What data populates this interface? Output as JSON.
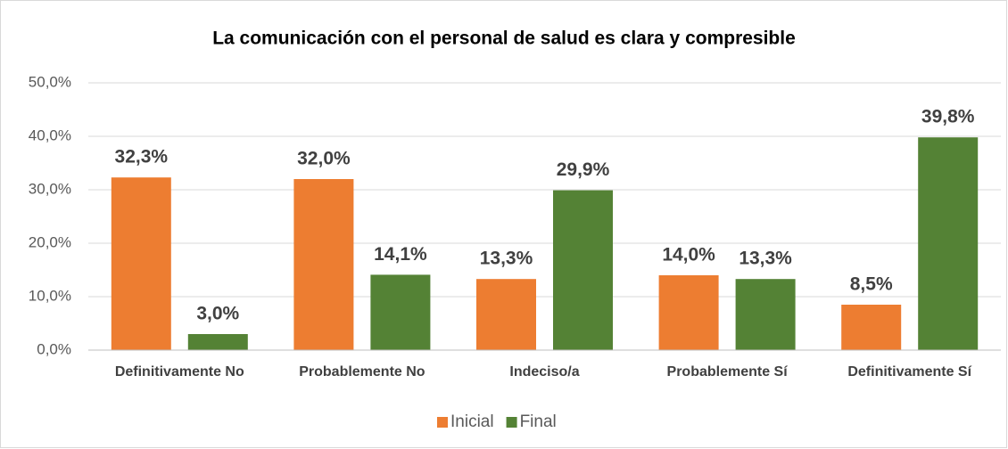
{
  "chart_data": {
    "type": "bar",
    "title": "La comunicación con el personal de salud es clara y compresible",
    "categories": [
      "Definitivamente No",
      "Probablemente No",
      "Indeciso/a",
      "Probablemente Sí",
      "Definitivamente Sí"
    ],
    "series": [
      {
        "name": "Inicial",
        "color": "#ed7d31",
        "values": [
          32.3,
          32.0,
          13.3,
          14.0,
          8.5
        ],
        "value_labels": [
          "32,3%",
          "32,0%",
          "13,3%",
          "14,0%",
          "8,5%"
        ]
      },
      {
        "name": "Final",
        "color": "#548235",
        "values": [
          3.0,
          14.1,
          29.9,
          13.3,
          39.8
        ],
        "value_labels": [
          "3,0%",
          "14,1%",
          "29,9%",
          "13,3%",
          "39,8%"
        ]
      }
    ],
    "ylim": [
      0,
      50
    ],
    "yticks": [
      {
        "value": 0,
        "label": "0,0%"
      },
      {
        "value": 10,
        "label": "10,0%"
      },
      {
        "value": 20,
        "label": "20,0%"
      },
      {
        "value": 30,
        "label": "30,0%"
      },
      {
        "value": 40,
        "label": "40,0%"
      },
      {
        "value": 50,
        "label": "50,0%"
      }
    ],
    "grid": true,
    "legend": "bottom"
  }
}
